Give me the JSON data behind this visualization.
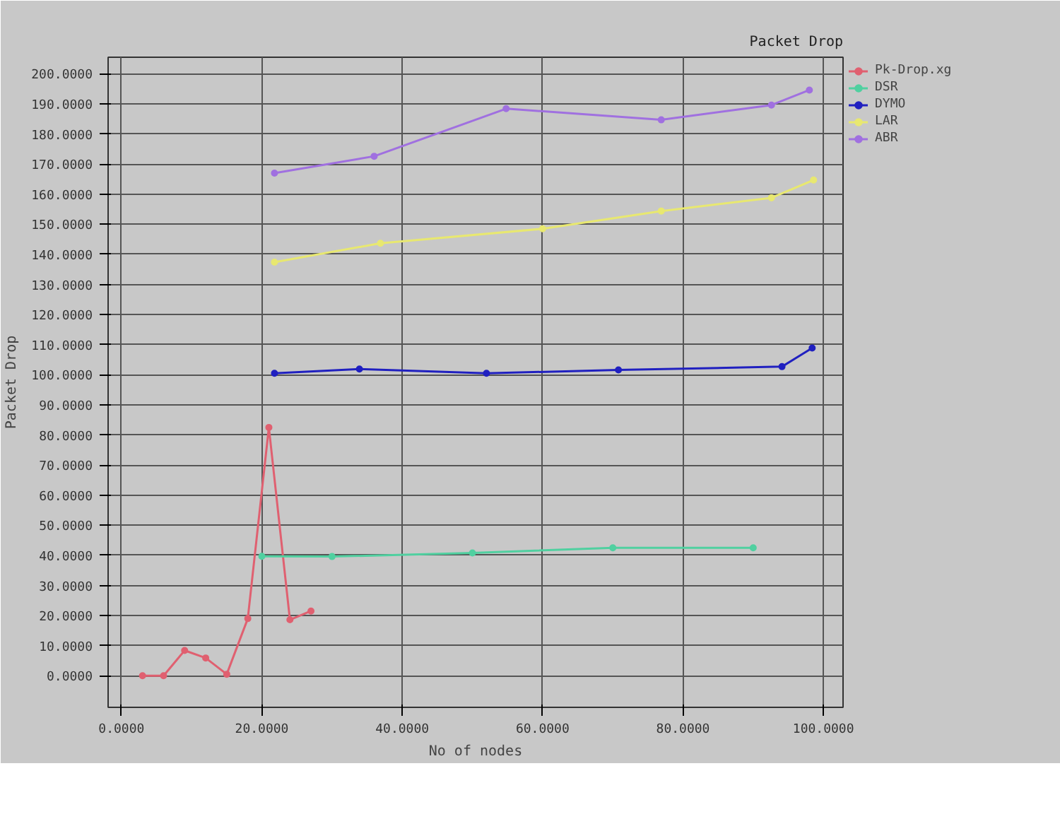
{
  "chart_data": {
    "type": "line",
    "title": "Packet Drop",
    "ylabel": "Packet Drop",
    "xlabel": "No of nodes",
    "xlim": [
      -1.9,
      102.8
    ],
    "ylim": [
      -10.5,
      205.5
    ],
    "xticks": [
      {
        "value": 0,
        "label": "0.0000"
      },
      {
        "value": 20,
        "label": "20.0000"
      },
      {
        "value": 40,
        "label": "40.0000"
      },
      {
        "value": 60,
        "label": "60.0000"
      },
      {
        "value": 80,
        "label": "80.0000"
      },
      {
        "value": 100,
        "label": "100.0000"
      }
    ],
    "yticks": [
      {
        "value": 0,
        "label": "0.0000"
      },
      {
        "value": 10,
        "label": "10.0000"
      },
      {
        "value": 20,
        "label": "20.0000"
      },
      {
        "value": 30,
        "label": "30.0000"
      },
      {
        "value": 40,
        "label": "40.0000"
      },
      {
        "value": 50,
        "label": "50.0000"
      },
      {
        "value": 60,
        "label": "60.0000"
      },
      {
        "value": 70,
        "label": "70.0000"
      },
      {
        "value": 80,
        "label": "80.0000"
      },
      {
        "value": 90,
        "label": "90.0000"
      },
      {
        "value": 100,
        "label": "100.0000"
      },
      {
        "value": 110,
        "label": "110.0000"
      },
      {
        "value": 120,
        "label": "120.0000"
      },
      {
        "value": 130,
        "label": "130.0000"
      },
      {
        "value": 140,
        "label": "140.0000"
      },
      {
        "value": 150,
        "label": "150.0000"
      },
      {
        "value": 160,
        "label": "160.0000"
      },
      {
        "value": 170,
        "label": "170.0000"
      },
      {
        "value": 180,
        "label": "180.0000"
      },
      {
        "value": 190,
        "label": "190.0000"
      },
      {
        "value": 200,
        "label": "200.0000"
      }
    ],
    "grid": true,
    "legend": "top right",
    "marker": "circle",
    "line_style": "solid",
    "series": [
      {
        "name": "Pk-Drop.xg",
        "color": "#e06070",
        "x": [
          3,
          6,
          9,
          12,
          15,
          18,
          21,
          24,
          27
        ],
        "values": [
          0,
          0,
          8.4,
          5.9,
          0.5,
          19,
          82.5,
          18.6,
          21.5
        ]
      },
      {
        "name": "DSR",
        "color": "#50d0a0",
        "x": [
          20,
          30,
          50,
          70,
          90
        ],
        "values": [
          39.7,
          39.6,
          40.8,
          42.5,
          42.5
        ]
      },
      {
        "name": "DYMO",
        "color": "#2020c0",
        "x": [
          21.8,
          33.9,
          52,
          70.8,
          94.1,
          98.4
        ],
        "values": [
          100.5,
          101.9,
          100.5,
          101.6,
          102.7,
          108.9
        ]
      },
      {
        "name": "LAR",
        "color": "#e8e870",
        "x": [
          21.8,
          36.9,
          60,
          76.9,
          92.6,
          98.6
        ],
        "values": [
          137.4,
          143.7,
          148.5,
          154.4,
          158.8,
          164.7
        ]
      },
      {
        "name": "ABR",
        "color": "#a070e0",
        "x": [
          21.8,
          36,
          54.8,
          76.9,
          92.6,
          98
        ],
        "values": [
          167,
          172.6,
          188.4,
          184.7,
          189.6,
          194.6
        ]
      }
    ]
  }
}
